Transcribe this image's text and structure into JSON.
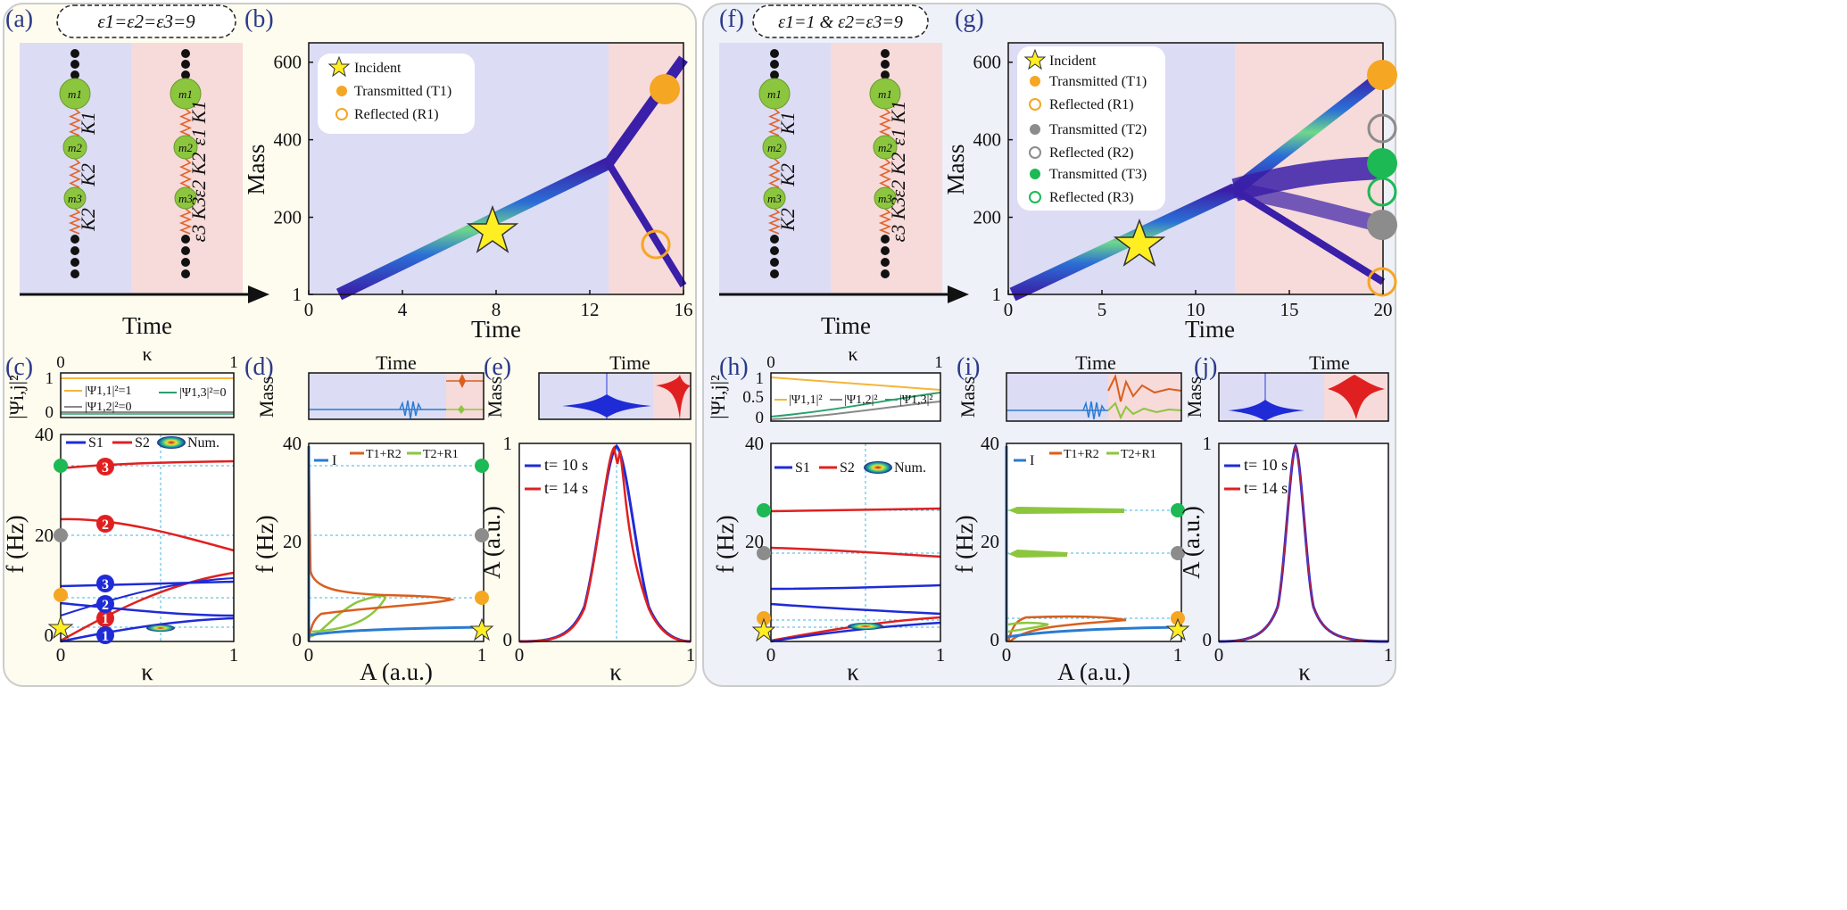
{
  "panel_labels": [
    "(a)",
    "(b)",
    "(c)",
    "(d)",
    "(e)",
    "(f)",
    "(g)",
    "(h)",
    "(i)",
    "(j)"
  ],
  "colors": {
    "left_bg": "#fdfcef",
    "right_bg": "#eef1f8",
    "region1": "#dcdcf5",
    "region2": "#f7dada",
    "s1": "#1f2bd6",
    "s2": "#e02020",
    "orange": "#f5a623",
    "gray": "#8c8c8c",
    "green": "#1db954",
    "star": "#ffee22",
    "ir": "#2b7bd0",
    "tr": "#d95f1e",
    "tr2": "#8cc63f"
  },
  "panel_a": {
    "condition": "ε1=ε2=ε3=9",
    "masses": [
      "m1",
      "m2",
      "m3"
    ],
    "left_springs": [
      "K1",
      "K2",
      "K2"
    ],
    "right_springs": [
      "ε1 K1",
      "ε2 K2",
      "ε3 K3"
    ],
    "xlabel": "Time"
  },
  "panel_f": {
    "condition": "ε1=1 & ε2=ε3=9",
    "masses": [
      "m1",
      "m2",
      "m3"
    ],
    "left_springs": [
      "K1",
      "K2",
      "K2"
    ],
    "right_springs": [
      "ε1 K1",
      "ε2 K2",
      "ε3 K3"
    ],
    "xlabel": "Time"
  },
  "chart_data": [
    {
      "id": "b",
      "type": "heatmap",
      "xlabel": "Time",
      "ylabel": "Mass",
      "xticks": [
        "0",
        "4",
        "8",
        "12",
        "16"
      ],
      "yticks": [
        "1",
        "200",
        "400",
        "600"
      ],
      "xlim": [
        0,
        16
      ],
      "ylim": [
        1,
        650
      ],
      "switch_time": 12,
      "legend": [
        "Incident",
        "Transmitted (T1)",
        "Reflected (R1)"
      ]
    },
    {
      "id": "g",
      "type": "heatmap",
      "xlabel": "Time",
      "ylabel": "Mass",
      "xticks": [
        "0",
        "5",
        "10",
        "15",
        "20"
      ],
      "yticks": [
        "1",
        "200",
        "400",
        "600"
      ],
      "xlim": [
        0,
        20
      ],
      "ylim": [
        1,
        650
      ],
      "switch_time": 12,
      "legend": [
        "Incident",
        "Transmitted (T1)",
        "Reflected (R1)",
        "Transmitted (T2)",
        "Reflected (R2)",
        "Transmitted (T3)",
        "Reflected (R3)"
      ]
    },
    {
      "id": "c",
      "type": "line",
      "xlabel": "κ",
      "top_label": "κ",
      "ylabel": "f (Hz)",
      "xticks": [
        "0",
        "1"
      ],
      "yticks": [
        "0",
        "20",
        "40"
      ],
      "ylim": [
        0,
        40
      ],
      "inset_ylabel": "|Ψi,j|²",
      "inset_yticks": [
        "1",
        "0"
      ],
      "inset_legend": [
        "|Ψ1,1|²=1",
        "|Ψ1,2|²=0",
        "|Ψ1,3|²=0"
      ],
      "legend": [
        "S1",
        "S2",
        "Num."
      ],
      "branch_numbers": [
        "3",
        "2",
        "1",
        "3",
        "2",
        "1"
      ]
    },
    {
      "id": "d",
      "type": "line",
      "xlabel": "A (a.u.)",
      "ylabel": "f (Hz)",
      "inset_title": "Time",
      "inset_ylabel": "Mass",
      "xticks": [
        "0",
        "1"
      ],
      "yticks": [
        "0",
        "20",
        "40"
      ],
      "legend": [
        "I",
        "T1+R2",
        "T2+R1"
      ]
    },
    {
      "id": "e",
      "type": "line",
      "xlabel": "κ",
      "ylabel": "A (a.u.)",
      "inset_title": "Time",
      "inset_ylabel": "Mass",
      "xticks": [
        "0",
        "1"
      ],
      "yticks": [
        "0",
        "1"
      ],
      "legend": [
        "t= 10 s",
        "t= 14 s"
      ]
    },
    {
      "id": "h",
      "type": "line",
      "xlabel": "κ",
      "top_label": "κ",
      "ylabel": "f (Hz)",
      "xticks": [
        "0",
        "1"
      ],
      "yticks": [
        "0",
        "20",
        "40"
      ],
      "inset_ylabel": "|Ψi,j|²",
      "inset_yticks": [
        "1",
        "0.5",
        "0"
      ],
      "inset_legend": [
        "|Ψ1,1|²",
        "|Ψ1,2|²",
        "|Ψ1,3|²"
      ],
      "legend": [
        "S1",
        "S2",
        "Num."
      ]
    },
    {
      "id": "i",
      "type": "line",
      "xlabel": "A (a.u.)",
      "ylabel": "f (Hz)",
      "inset_title": "Time",
      "inset_ylabel": "Mass",
      "xticks": [
        "0",
        "1"
      ],
      "yticks": [
        "0",
        "20",
        "40"
      ],
      "legend": [
        "I",
        "T1+R2",
        "T2+R1"
      ]
    },
    {
      "id": "j",
      "type": "line",
      "xlabel": "κ",
      "ylabel": "A (a.u.)",
      "inset_title": "Time",
      "inset_ylabel": "Mass",
      "xticks": [
        "0",
        "1"
      ],
      "yticks": [
        "0",
        "1"
      ],
      "legend": [
        "t= 10 s",
        "t= 14 s"
      ]
    }
  ]
}
